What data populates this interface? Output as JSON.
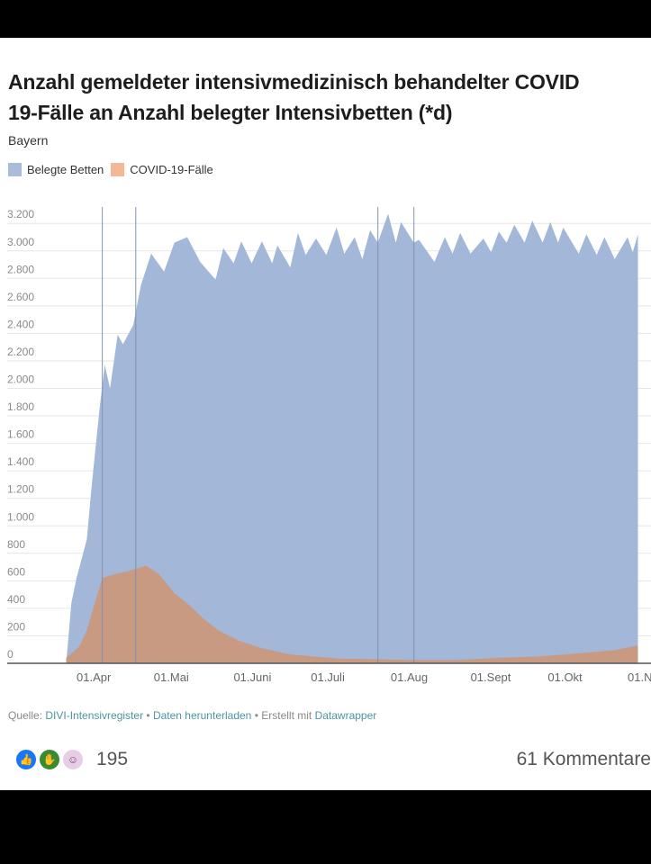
{
  "post": {
    "reaction_count": "195",
    "comments": "61 Kommentare",
    "reactions": [
      "like-icon",
      "care-icon",
      "haha-icon"
    ]
  },
  "chart_data": {
    "type": "area",
    "title": "Anzahl gemeldeter intensivmedizinisch behandelter COVID 19-Fälle an Anzahl belegter Intensivbetten (*d)",
    "title_line1": "Anzahl gemeldeter intensivmedizinisch behandelter COVID",
    "title_line2": "19-Fälle an Anzahl belegter Intensivbetten (*d)",
    "subtitle": "Bayern",
    "legend_placement": "top-left",
    "grid": true,
    "ylim": [
      0,
      3200
    ],
    "yticks": [
      0,
      200,
      400,
      600,
      800,
      1000,
      1200,
      1400,
      1600,
      1800,
      2000,
      2200,
      2400,
      2600,
      2800,
      3000,
      3200
    ],
    "ytick_labels": [
      "0",
      "200",
      "400",
      "600",
      "800",
      "1.000",
      "1.200",
      "1.400",
      "1.600",
      "1.800",
      "2.000",
      "2.200",
      "2.400",
      "2.600",
      "2.800",
      "3.000",
      "3.200"
    ],
    "xticks": [
      "04-01",
      "05-01",
      "06-01",
      "07-01",
      "08-01",
      "09-01",
      "10-01",
      "11-01"
    ],
    "xtick_labels": [
      "01.Apr",
      "01.Mai",
      "01.Juni",
      "01.Juli",
      "01.Aug",
      "01.Sept",
      "01.Okt",
      "01.N"
    ],
    "reference_lines": [
      "04-04",
      "04-17",
      "07-20",
      "08-03"
    ],
    "series": [
      {
        "name": "Belegte Betten",
        "color": "#a3b7d9",
        "legend_color": "#a9bcdc",
        "x": [
          "03-21",
          "03-23",
          "03-25",
          "03-29",
          "03-31",
          "04-03",
          "04-05",
          "04-07",
          "04-10",
          "04-12",
          "04-16",
          "04-19",
          "04-23",
          "04-28",
          "05-02",
          "05-07",
          "05-12",
          "05-18",
          "05-21",
          "05-25",
          "05-28",
          "06-01",
          "06-05",
          "06-09",
          "06-11",
          "06-16",
          "06-19",
          "06-22",
          "06-26",
          "06-30",
          "07-04",
          "07-07",
          "07-11",
          "07-14",
          "07-17",
          "07-20",
          "07-24",
          "07-27",
          "07-29",
          "08-03",
          "08-05",
          "08-11",
          "08-15",
          "08-18",
          "08-21",
          "08-25",
          "08-30",
          "09-02",
          "09-05",
          "09-08",
          "09-11",
          "09-15",
          "09-18",
          "09-22",
          "09-25",
          "09-28",
          "09-30",
          "10-06",
          "10-09",
          "10-13",
          "10-16",
          "10-20",
          "10-25",
          "10-27",
          "10-29"
        ],
        "values": [
          0,
          440,
          620,
          900,
          1310,
          1860,
          2170,
          2000,
          2390,
          2320,
          2460,
          2750,
          2980,
          2850,
          3060,
          3100,
          2920,
          2790,
          3020,
          2910,
          3070,
          2910,
          3070,
          2910,
          3040,
          2880,
          3130,
          2970,
          3090,
          2970,
          3170,
          2980,
          3100,
          2940,
          3150,
          3060,
          3270,
          3060,
          3210,
          3060,
          3080,
          2920,
          3100,
          2980,
          3130,
          2980,
          3090,
          2990,
          3140,
          3060,
          3190,
          3060,
          3220,
          3060,
          3210,
          3060,
          3170,
          2980,
          3120,
          2970,
          3100,
          2940,
          3100,
          2990,
          3120
        ]
      },
      {
        "name": "COVID-19-Fälle",
        "color": "#c99a82",
        "legend_color": "#f4b896",
        "x": [
          "03-21",
          "03-26",
          "03-29",
          "04-04",
          "04-09",
          "04-14",
          "04-21",
          "04-26",
          "05-02",
          "05-08",
          "05-13",
          "05-19",
          "05-27",
          "06-05",
          "06-16",
          "07-05",
          "08-01",
          "08-20",
          "09-05",
          "09-20",
          "10-01",
          "10-20",
          "10-29"
        ],
        "values": [
          40,
          120,
          240,
          620,
          650,
          670,
          710,
          650,
          510,
          420,
          330,
          240,
          165,
          110,
          65,
          35,
          25,
          25,
          40,
          50,
          65,
          95,
          130
        ]
      }
    ]
  },
  "source": {
    "prefix": "Quelle: ",
    "source_link": "DIVI-Intensivregister",
    "sep1": " • ",
    "download_link": "Daten herunterladen",
    "sep2": " • Erstellt mit ",
    "tool_link": "Datawrapper"
  }
}
